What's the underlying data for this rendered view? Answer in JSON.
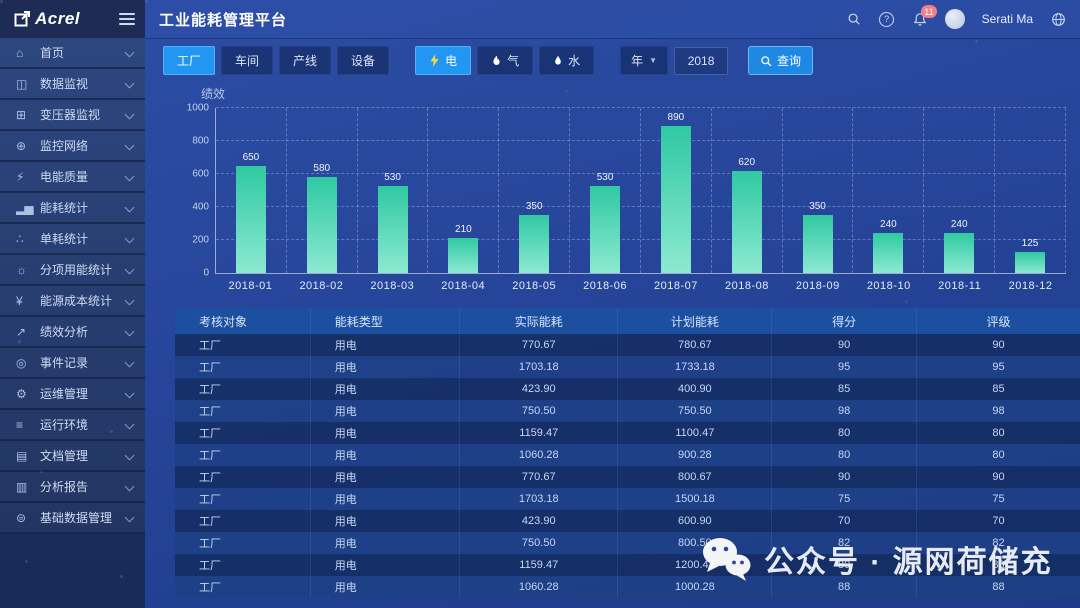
{
  "app": {
    "logo": "Acrel",
    "title": "工业能耗管理平台",
    "user": "Serati Ma",
    "notification_count": "11"
  },
  "sidebar": {
    "items": [
      {
        "label": "首页",
        "icon": "⌂",
        "icon_name": "home-icon"
      },
      {
        "label": "数据监视",
        "icon": "◫",
        "icon_name": "data-monitor-icon"
      },
      {
        "label": "变压器监视",
        "icon": "⊞",
        "icon_name": "transformer-monitor-icon"
      },
      {
        "label": "监控网络",
        "icon": "⊕",
        "icon_name": "network-monitor-icon"
      },
      {
        "label": "电能质量",
        "icon": "⚡",
        "icon_name": "power-quality-icon"
      },
      {
        "label": "能耗统计",
        "icon": "▂▅",
        "icon_name": "energy-stats-icon"
      },
      {
        "label": "单耗统计",
        "icon": "∴",
        "icon_name": "unit-consumption-icon"
      },
      {
        "label": "分项用能统计",
        "icon": "☼",
        "icon_name": "subitem-energy-icon"
      },
      {
        "label": "能源成本统计",
        "icon": "¥",
        "icon_name": "energy-cost-icon"
      },
      {
        "label": "绩效分析",
        "icon": "↗",
        "icon_name": "performance-analysis-icon"
      },
      {
        "label": "事件记录",
        "icon": "◎",
        "icon_name": "event-log-icon"
      },
      {
        "label": "运维管理",
        "icon": "⚙",
        "icon_name": "ops-management-icon"
      },
      {
        "label": "运行环境",
        "icon": "≡",
        "icon_name": "runtime-env-icon"
      },
      {
        "label": "文档管理",
        "icon": "▤",
        "icon_name": "document-management-icon"
      },
      {
        "label": "分析报告",
        "icon": "▥",
        "icon_name": "analysis-report-icon"
      },
      {
        "label": "基础数据管理",
        "icon": "⊜",
        "icon_name": "base-data-icon"
      }
    ]
  },
  "filters": {
    "scope_tabs": [
      "工厂",
      "车间",
      "产线",
      "设备"
    ],
    "scope_active_index": 0,
    "energy_tabs": [
      {
        "label": "电",
        "icon": "bolt",
        "active": true
      },
      {
        "label": "气",
        "icon": "flame",
        "active": false
      },
      {
        "label": "水",
        "icon": "drop",
        "active": false
      }
    ],
    "year_label": "年",
    "year_value": "2018",
    "query_label": "查询"
  },
  "chart_data": {
    "type": "bar",
    "title": "绩效",
    "categories": [
      "2018-01",
      "2018-02",
      "2018-03",
      "2018-04",
      "2018-05",
      "2018-06",
      "2018-07",
      "2018-08",
      "2018-09",
      "2018-10",
      "2018-11",
      "2018-12"
    ],
    "values": [
      650,
      580,
      530,
      210,
      350,
      530,
      890,
      620,
      350,
      240,
      240,
      125
    ],
    "xlabel": "",
    "ylabel": "",
    "ylim": [
      0,
      1000
    ],
    "ytick_step": 200,
    "grid": true,
    "legend": false
  },
  "table": {
    "columns": [
      "考核对象",
      "能耗类型",
      "实际能耗",
      "计划能耗",
      "得分",
      "评级"
    ],
    "rows": [
      [
        "工厂",
        "用电",
        "770.67",
        "780.67",
        "90",
        "90"
      ],
      [
        "工厂",
        "用电",
        "1703.18",
        "1733.18",
        "95",
        "95"
      ],
      [
        "工厂",
        "用电",
        "423.90",
        "400.90",
        "85",
        "85"
      ],
      [
        "工厂",
        "用电",
        "750.50",
        "750.50",
        "98",
        "98"
      ],
      [
        "工厂",
        "用电",
        "1159.47",
        "1100.47",
        "80",
        "80"
      ],
      [
        "工厂",
        "用电",
        "1060.28",
        "900.28",
        "80",
        "80"
      ],
      [
        "工厂",
        "用电",
        "770.67",
        "800.67",
        "90",
        "90"
      ],
      [
        "工厂",
        "用电",
        "1703.18",
        "1500.18",
        "75",
        "75"
      ],
      [
        "工厂",
        "用电",
        "423.90",
        "600.90",
        "70",
        "70"
      ],
      [
        "工厂",
        "用电",
        "750.50",
        "800.50",
        "82",
        "82"
      ],
      [
        "工厂",
        "用电",
        "1159.47",
        "1200.47",
        "80",
        "80"
      ],
      [
        "工厂",
        "用电",
        "1060.28",
        "1000.28",
        "88",
        "88"
      ]
    ]
  },
  "watermark": {
    "text": "公众号 · 源网荷储充"
  },
  "icons": {
    "help_glyph": "?"
  },
  "theme": {
    "accent_blue": "#2196f3",
    "bar_gradient_top": "#2fc9a2",
    "bar_gradient_bottom": "#8ce9d1",
    "badge_red": "#ef8086",
    "bolt_yellow": "#ffd04a"
  }
}
